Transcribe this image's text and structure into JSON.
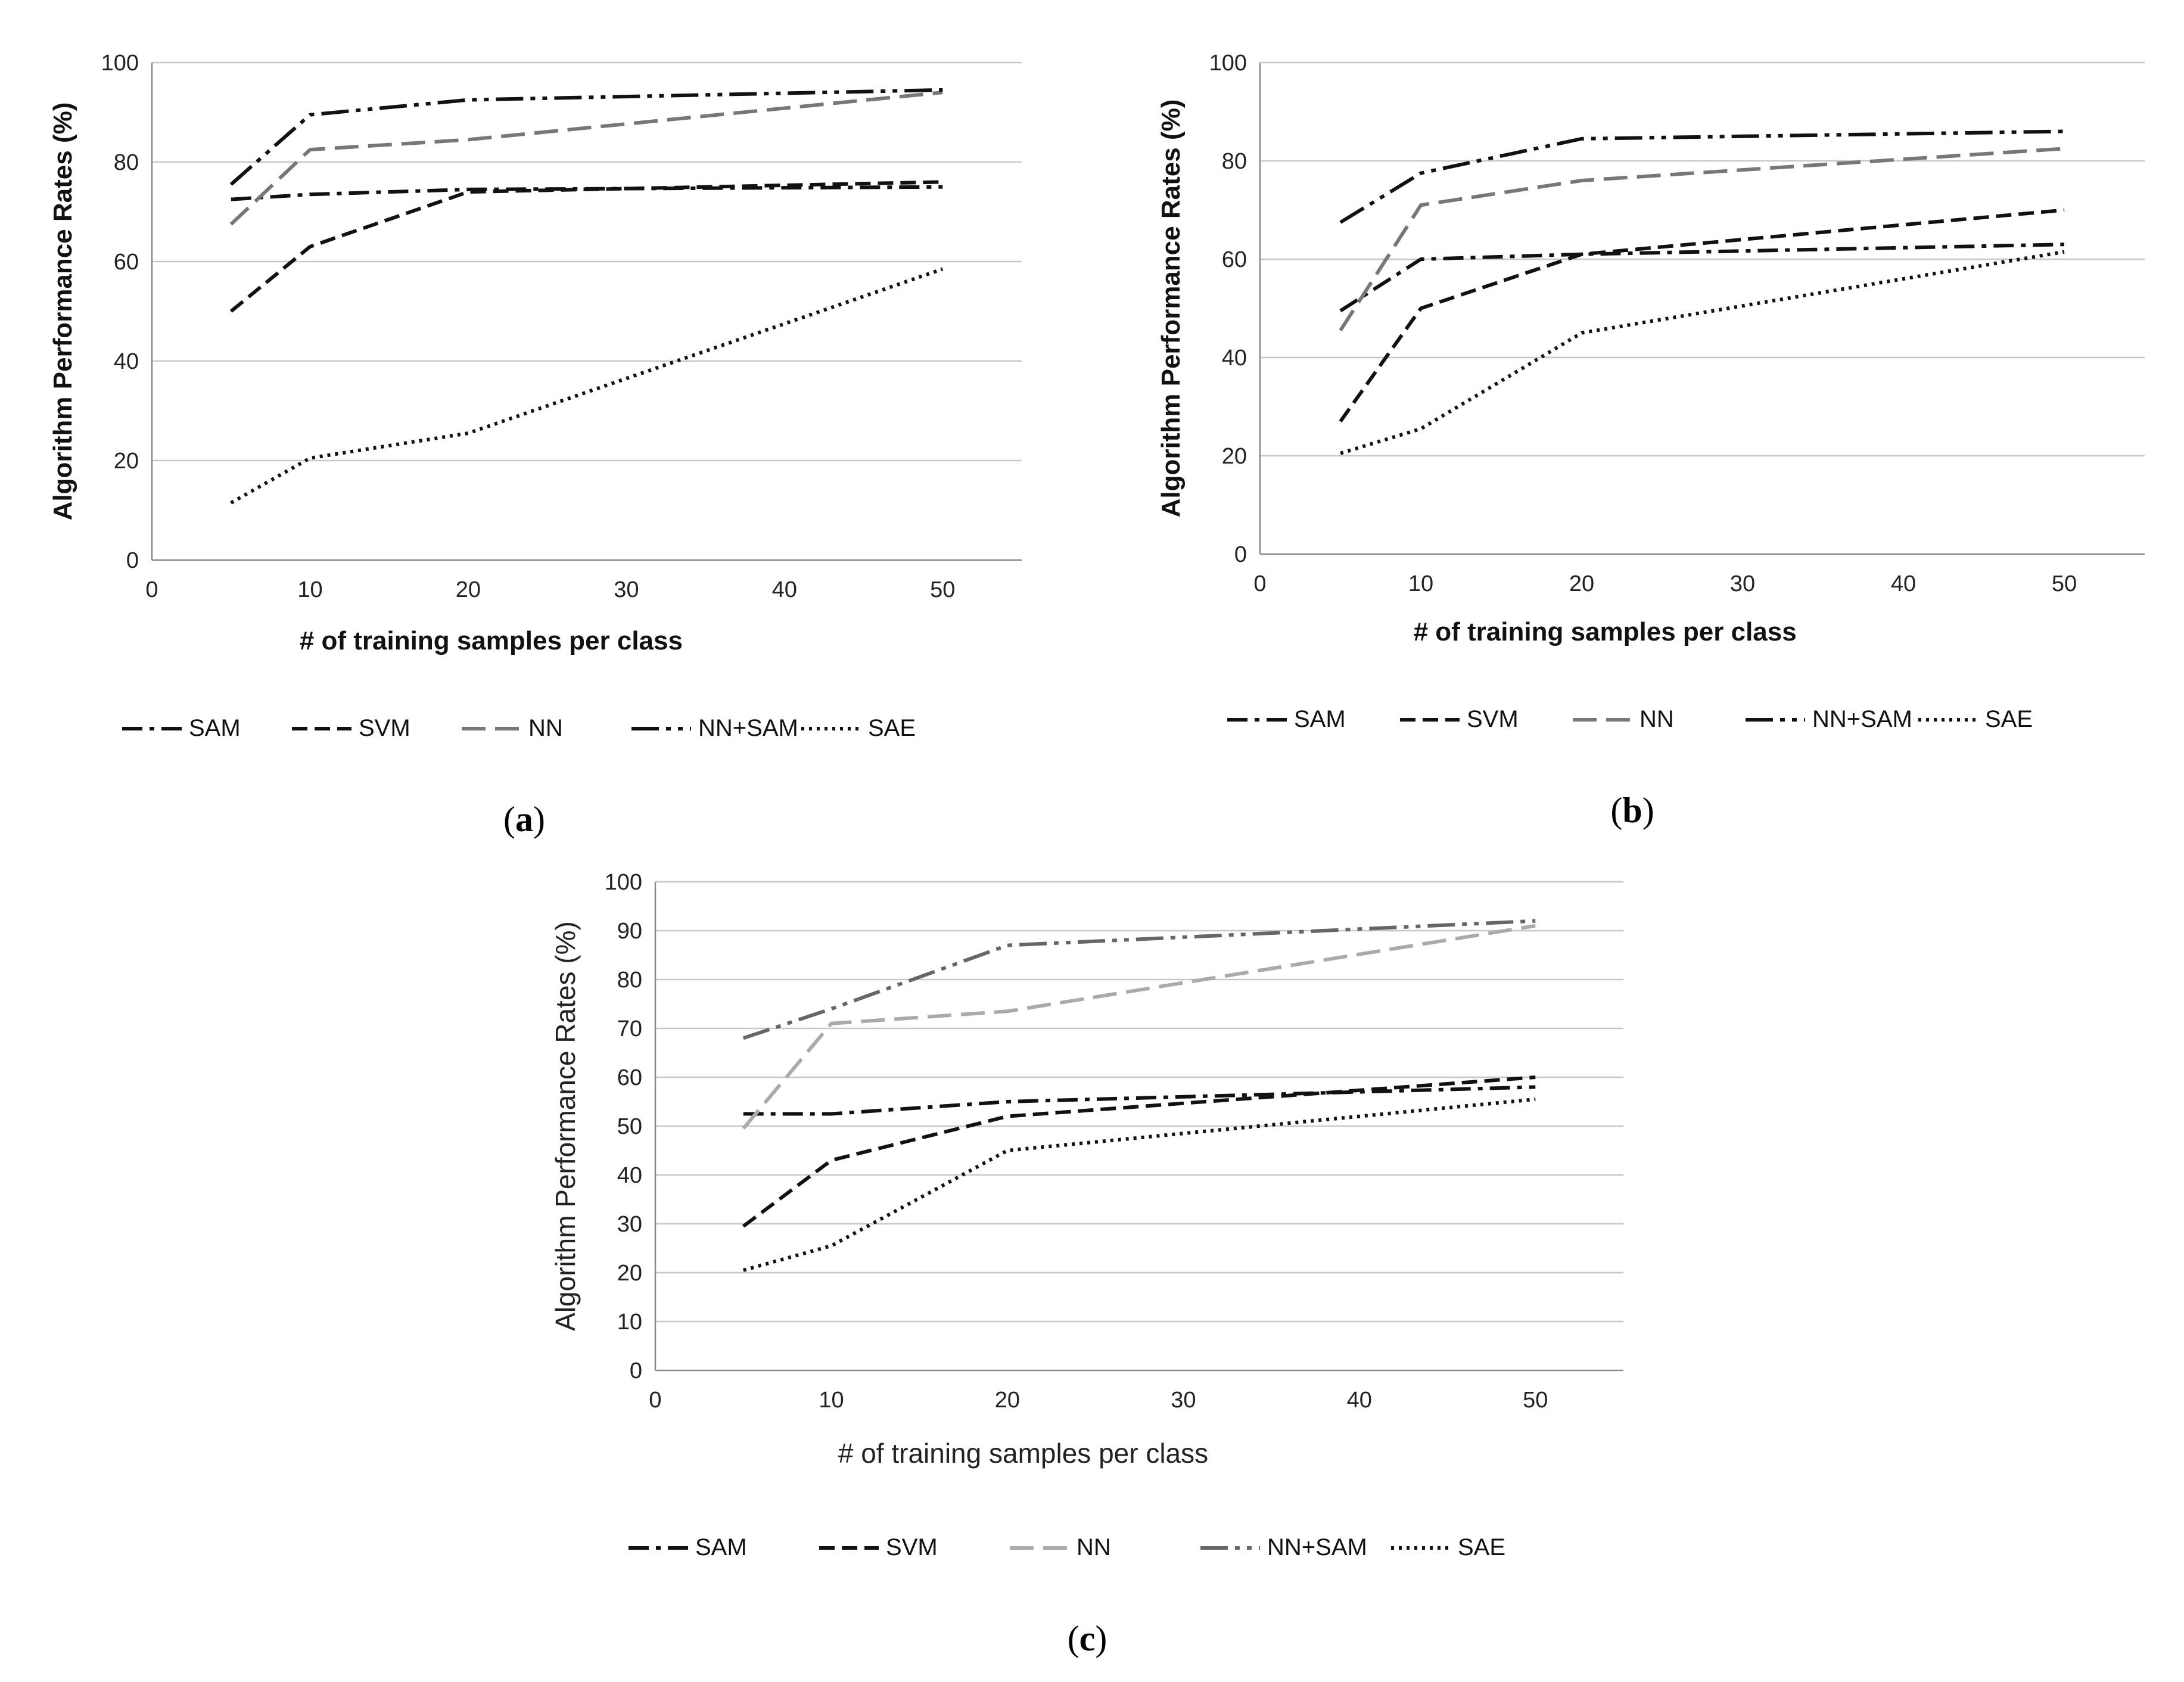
{
  "chart_data": [
    {
      "id": "a",
      "type": "line",
      "caption_letter": "a",
      "caption_open": "(",
      "caption_close": ")",
      "title": "",
      "xlabel": "# of training samples per class",
      "ylabel": "Algorithm Performance Rates (%)",
      "xlim": [
        0,
        55
      ],
      "ylim": [
        0,
        100
      ],
      "x_ticks": [
        0,
        10,
        20,
        30,
        40,
        50
      ],
      "y_ticks": [
        0,
        20,
        40,
        60,
        80,
        100
      ],
      "grid": true,
      "legend": "bottom",
      "x": [
        5,
        10,
        20,
        50
      ],
      "series": [
        {
          "name": "SAM",
          "values": [
            72.5,
            73.5,
            74.5,
            75
          ],
          "color": "#111111",
          "dash": "dashdot"
        },
        {
          "name": "SVM",
          "values": [
            50,
            63,
            74,
            76
          ],
          "color": "#111111",
          "dash": "dash"
        },
        {
          "name": "NN",
          "values": [
            67.5,
            82.5,
            84.5,
            94
          ],
          "color": "#777777",
          "dash": "longdash"
        },
        {
          "name": "NN+SAM",
          "values": [
            75.5,
            89.5,
            92.5,
            94.5
          ],
          "color": "#111111",
          "dash": "dashdotdot"
        },
        {
          "name": "SAE",
          "values": [
            11.5,
            20.5,
            25.5,
            58.5
          ],
          "color": "#111111",
          "dash": "dot"
        }
      ]
    },
    {
      "id": "b",
      "type": "line",
      "caption_letter": "b",
      "caption_open": "(",
      "caption_close": ")",
      "title": "",
      "xlabel": "# of training samples per class",
      "ylabel": "Algorithm Performance Rates (%)",
      "xlim": [
        0,
        55
      ],
      "ylim": [
        0,
        100
      ],
      "x_ticks": [
        0,
        10,
        20,
        30,
        40,
        50
      ],
      "y_ticks": [
        0,
        20,
        40,
        60,
        80,
        100
      ],
      "grid": true,
      "legend": "bottom",
      "x": [
        5,
        10,
        20,
        50
      ],
      "series": [
        {
          "name": "SAM",
          "values": [
            49.5,
            60,
            61,
            63
          ],
          "color": "#111111",
          "dash": "dashdot"
        },
        {
          "name": "SVM",
          "values": [
            27,
            50,
            61,
            70
          ],
          "color": "#111111",
          "dash": "dash"
        },
        {
          "name": "NN",
          "values": [
            45.5,
            71,
            76,
            82.5
          ],
          "color": "#777777",
          "dash": "longdash"
        },
        {
          "name": "NN+SAM",
          "values": [
            67.5,
            77.5,
            84.5,
            86
          ],
          "color": "#111111",
          "dash": "dashdotdot"
        },
        {
          "name": "SAE",
          "values": [
            20.5,
            25.5,
            45,
            61.5
          ],
          "color": "#111111",
          "dash": "dot"
        }
      ]
    },
    {
      "id": "c",
      "type": "line",
      "caption_letter": "c",
      "caption_open": "(",
      "caption_close": ")",
      "title": "",
      "xlabel": "# of training samples per class",
      "ylabel": "Algorithm Performance Rates (%)",
      "xlim": [
        0,
        55
      ],
      "ylim": [
        0,
        100
      ],
      "x_ticks": [
        0,
        10,
        20,
        30,
        40,
        50
      ],
      "y_ticks": [
        0,
        10,
        20,
        30,
        40,
        50,
        60,
        70,
        80,
        90,
        100
      ],
      "grid": true,
      "legend": "bottom",
      "x": [
        5,
        10,
        20,
        50
      ],
      "series": [
        {
          "name": "SAM",
          "values": [
            52.5,
            52.5,
            55,
            58
          ],
          "color": "#111111",
          "dash": "dashdot"
        },
        {
          "name": "SVM",
          "values": [
            29.5,
            43,
            52,
            60
          ],
          "color": "#111111",
          "dash": "dash"
        },
        {
          "name": "NN",
          "values": [
            49.5,
            71,
            73.5,
            91
          ],
          "color": "#aaaaaa",
          "dash": "longdash"
        },
        {
          "name": "NN+SAM",
          "values": [
            68,
            74,
            87,
            92
          ],
          "color": "#666666",
          "dash": "dashdotdot"
        },
        {
          "name": "SAE",
          "values": [
            20.5,
            25.5,
            45,
            55.5
          ],
          "color": "#111111",
          "dash": "dot"
        }
      ]
    }
  ]
}
